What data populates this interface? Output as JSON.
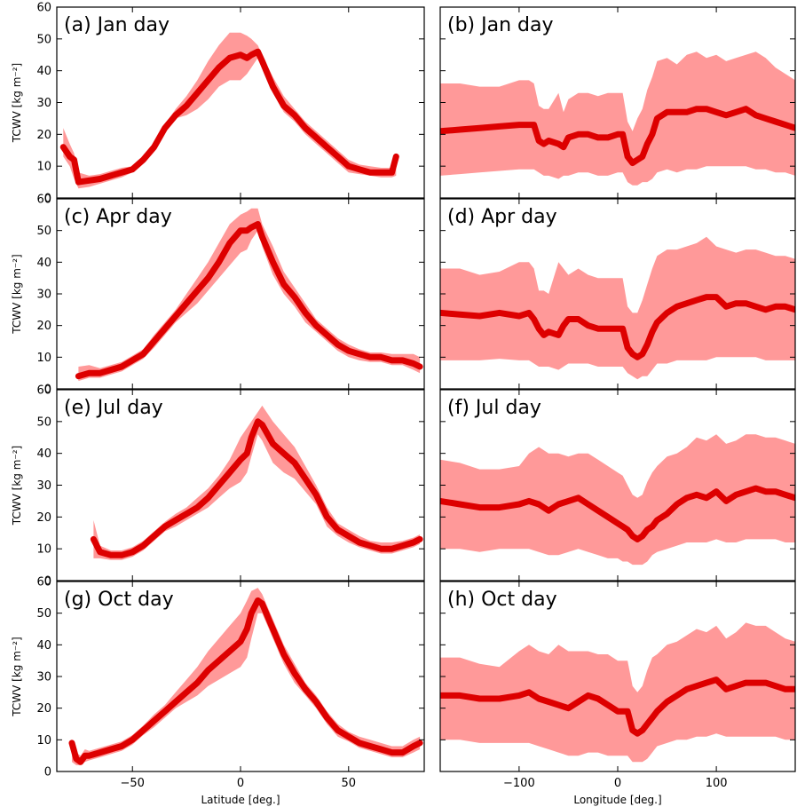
{
  "colors": {
    "band": "#ff7777",
    "mean": "#dd0000",
    "axis": "#000000"
  },
  "chart_data": [
    {
      "type": "area",
      "panel_label": "(a) Jan day",
      "ylabel": "TCWV  [kg m⁻²]",
      "xlabel": "",
      "xlim": [
        -85,
        85
      ],
      "ylim": [
        0,
        60
      ],
      "xticks": [
        -50,
        0,
        50
      ],
      "yticks": [
        0,
        10,
        20,
        30,
        40,
        50,
        60
      ],
      "x": [
        -82,
        -79,
        -77,
        -75,
        -70,
        -65,
        -60,
        -55,
        -50,
        -45,
        -40,
        -35,
        -30,
        -25,
        -20,
        -15,
        -10,
        -5,
        0,
        3,
        5,
        8,
        10,
        15,
        20,
        25,
        30,
        35,
        40,
        45,
        50,
        55,
        60,
        65,
        70,
        72
      ],
      "mean": [
        16,
        13,
        12,
        5,
        5.5,
        6,
        7,
        8,
        9,
        12,
        16,
        22,
        26,
        29,
        33,
        37,
        41,
        44,
        45,
        44,
        45,
        46,
        43,
        35,
        29,
        26,
        22,
        19,
        16,
        13,
        10,
        9,
        8,
        8,
        8,
        13
      ],
      "upper": [
        22,
        17,
        14,
        8,
        7,
        7.5,
        8.5,
        9.5,
        10,
        13,
        17,
        23,
        28,
        32,
        37,
        43,
        48,
        52,
        52,
        51,
        50,
        48,
        45,
        38,
        32,
        28,
        24,
        21,
        18,
        15,
        12,
        10.5,
        10,
        9.5,
        9.5,
        13
      ],
      "lower": [
        13,
        10,
        6,
        3,
        3.5,
        4.5,
        5.5,
        6.5,
        8,
        11,
        15,
        21,
        25,
        26,
        28,
        31,
        35,
        37,
        37,
        39,
        41,
        44,
        41,
        33,
        27,
        24,
        20,
        17,
        14,
        11,
        8,
        7.5,
        7,
        6.5,
        6.5,
        7
      ]
    },
    {
      "type": "area",
      "panel_label": "(b) Jan day",
      "ylabel": "",
      "xlabel": "",
      "xlim": [
        -180,
        180
      ],
      "ylim": [
        0,
        60
      ],
      "xticks": [
        -100,
        0,
        100
      ],
      "yticks": [
        0,
        10,
        20,
        30,
        40,
        50,
        60
      ],
      "x": [
        -180,
        -160,
        -140,
        -120,
        -100,
        -90,
        -85,
        -80,
        -75,
        -70,
        -60,
        -55,
        -50,
        -40,
        -30,
        -20,
        -10,
        0,
        5,
        10,
        15,
        20,
        25,
        30,
        35,
        40,
        50,
        60,
        70,
        80,
        90,
        100,
        110,
        120,
        130,
        140,
        150,
        160,
        170,
        180
      ],
      "mean": [
        21,
        21.5,
        22,
        22.5,
        23,
        23,
        23,
        18,
        17,
        18,
        17,
        16,
        19,
        20,
        20,
        19,
        19,
        20,
        20,
        13,
        11,
        12,
        13,
        17,
        20,
        25,
        27,
        27,
        27,
        28,
        28,
        27,
        26,
        27,
        28,
        26,
        25,
        24,
        23,
        22
      ],
      "upper": [
        36,
        36,
        35,
        35,
        37,
        37,
        36,
        29,
        28,
        28,
        33,
        27,
        31,
        33,
        33,
        32,
        33,
        33,
        33,
        24,
        21,
        25,
        28,
        34,
        38,
        43,
        44,
        42,
        45,
        46,
        44,
        45,
        43,
        44,
        45,
        46,
        44,
        41,
        39,
        37
      ],
      "lower": [
        7,
        7.5,
        8,
        8.5,
        9,
        9,
        9,
        8,
        7,
        7,
        6,
        7,
        7,
        8,
        8,
        7,
        7,
        8,
        8,
        5,
        4,
        4,
        5,
        5,
        6,
        8,
        9,
        8,
        9,
        9,
        10,
        10,
        10,
        10,
        10,
        9,
        9,
        8,
        8,
        7
      ]
    },
    {
      "type": "area",
      "panel_label": "(c) Apr day",
      "ylabel": "TCWV  [kg m⁻²]",
      "xlabel": "",
      "xlim": [
        -85,
        85
      ],
      "ylim": [
        0,
        60
      ],
      "xticks": [
        -50,
        0,
        50
      ],
      "yticks": [
        0,
        10,
        20,
        30,
        40,
        50,
        60
      ],
      "x": [
        -75,
        -70,
        -65,
        -60,
        -55,
        -50,
        -45,
        -40,
        -35,
        -30,
        -25,
        -20,
        -15,
        -10,
        -5,
        0,
        3,
        5,
        8,
        10,
        15,
        20,
        25,
        30,
        35,
        40,
        45,
        50,
        55,
        60,
        65,
        70,
        75,
        80,
        83
      ],
      "mean": [
        4,
        5,
        5,
        6,
        7,
        9,
        11,
        15,
        19,
        23,
        27,
        31,
        35,
        40,
        46,
        50,
        50,
        51,
        52,
        48,
        40,
        33,
        29,
        24,
        20,
        17,
        14,
        12,
        11,
        10,
        10,
        9,
        9,
        8,
        7
      ],
      "upper": [
        7,
        7.5,
        6.5,
        7.5,
        8.5,
        10.5,
        12.5,
        17,
        21,
        25,
        30,
        35,
        40,
        46,
        52,
        55,
        56,
        57,
        57,
        52,
        45,
        37,
        32,
        27,
        22,
        19,
        16,
        14,
        12.5,
        11.5,
        11.5,
        11,
        11,
        11,
        10
      ],
      "lower": [
        2.5,
        3.5,
        3.5,
        4.5,
        5.5,
        7.5,
        9.5,
        13,
        17,
        21,
        24,
        27,
        31,
        35,
        39,
        43,
        44,
        47,
        50,
        45,
        36,
        30,
        26,
        21,
        18,
        15,
        12,
        10,
        9,
        8.5,
        8.5,
        7.5,
        7.5,
        6,
        5
      ]
    },
    {
      "type": "area",
      "panel_label": "(d) Apr day",
      "ylabel": "",
      "xlabel": "",
      "xlim": [
        -180,
        180
      ],
      "ylim": [
        0,
        60
      ],
      "xticks": [
        -100,
        0,
        100
      ],
      "yticks": [
        0,
        10,
        20,
        30,
        40,
        50,
        60
      ],
      "x": [
        -180,
        -160,
        -140,
        -120,
        -100,
        -90,
        -85,
        -80,
        -75,
        -70,
        -60,
        -55,
        -50,
        -40,
        -30,
        -20,
        -10,
        0,
        5,
        10,
        15,
        20,
        25,
        30,
        35,
        40,
        50,
        60,
        70,
        80,
        90,
        100,
        110,
        120,
        130,
        140,
        150,
        160,
        170,
        180
      ],
      "mean": [
        24,
        23.5,
        23,
        24,
        23,
        24,
        22,
        19,
        17,
        18,
        17,
        20,
        22,
        22,
        20,
        19,
        19,
        19,
        19,
        13,
        11,
        10,
        11,
        14,
        18,
        21,
        24,
        26,
        27,
        28,
        29,
        29,
        26,
        27,
        27,
        26,
        25,
        26,
        26,
        25
      ],
      "upper": [
        38,
        38,
        36,
        37,
        40,
        40,
        38,
        31,
        31,
        30,
        40,
        38,
        36,
        38,
        36,
        35,
        35,
        35,
        35,
        26,
        24,
        24,
        28,
        33,
        38,
        42,
        44,
        44,
        45,
        46,
        48,
        45,
        44,
        43,
        44,
        44,
        43,
        42,
        42,
        41
      ],
      "lower": [
        9,
        9,
        9,
        9.5,
        9,
        9,
        8,
        7,
        7,
        7,
        6,
        7,
        8,
        8,
        8,
        7,
        7,
        7,
        7,
        5,
        4,
        3,
        4,
        4,
        6,
        8,
        8,
        9,
        9,
        9,
        9,
        10,
        10,
        10,
        10,
        10,
        9,
        9,
        9,
        9
      ]
    },
    {
      "type": "area",
      "panel_label": "(e) Jul day",
      "ylabel": "TCWV  [kg m⁻²]",
      "xlabel": "",
      "xlim": [
        -85,
        85
      ],
      "ylim": [
        0,
        60
      ],
      "xticks": [
        -50,
        0,
        50
      ],
      "yticks": [
        0,
        10,
        20,
        30,
        40,
        50,
        60
      ],
      "x": [
        -68,
        -65,
        -60,
        -55,
        -50,
        -45,
        -40,
        -35,
        -30,
        -25,
        -20,
        -15,
        -10,
        -5,
        0,
        3,
        5,
        8,
        10,
        15,
        20,
        25,
        30,
        35,
        40,
        45,
        50,
        55,
        60,
        65,
        70,
        75,
        80,
        83
      ],
      "mean": [
        13,
        9,
        8,
        8,
        9,
        11,
        14,
        17,
        19,
        21,
        23,
        26,
        30,
        34,
        38,
        40,
        45,
        50,
        49,
        43,
        40,
        37,
        32,
        27,
        20,
        16,
        14,
        12,
        11,
        10,
        10,
        11,
        12,
        13
      ],
      "upper": [
        19,
        11,
        9.5,
        9.5,
        10.5,
        12.5,
        15.5,
        18.5,
        21,
        23,
        26,
        29,
        33,
        38,
        45,
        48,
        50,
        53,
        55,
        50,
        46,
        42,
        36,
        30,
        23,
        18,
        16,
        14,
        12.5,
        12,
        12,
        12.5,
        13.5,
        14.5
      ],
      "lower": [
        7,
        7,
        6.5,
        6.5,
        7.5,
        9.5,
        12.5,
        15.5,
        17,
        19,
        21,
        23,
        26,
        29,
        31,
        34,
        39,
        46,
        44,
        37,
        34,
        32,
        28,
        24,
        17,
        14,
        12,
        10.5,
        9.5,
        8.5,
        8.5,
        9.5,
        10.5,
        11.5
      ]
    },
    {
      "type": "area",
      "panel_label": "(f) Jul day",
      "ylabel": "",
      "xlabel": "",
      "xlim": [
        -180,
        180
      ],
      "ylim": [
        0,
        60
      ],
      "xticks": [
        -100,
        0,
        100
      ],
      "yticks": [
        0,
        10,
        20,
        30,
        40,
        50,
        60
      ],
      "x": [
        -180,
        -160,
        -140,
        -120,
        -100,
        -90,
        -80,
        -70,
        -60,
        -50,
        -40,
        -30,
        -20,
        -10,
        0,
        5,
        10,
        15,
        20,
        25,
        30,
        35,
        40,
        50,
        60,
        70,
        80,
        90,
        100,
        110,
        120,
        130,
        140,
        150,
        160,
        170,
        180
      ],
      "mean": [
        25,
        24,
        23,
        23,
        24,
        25,
        24,
        22,
        24,
        25,
        26,
        24,
        22,
        20,
        18,
        17,
        16,
        14,
        13,
        14,
        16,
        17,
        19,
        21,
        24,
        26,
        27,
        26,
        28,
        25,
        27,
        28,
        29,
        28,
        28,
        27,
        26
      ],
      "upper": [
        38,
        37,
        35,
        35,
        36,
        40,
        42,
        40,
        40,
        39,
        40,
        40,
        38,
        36,
        34,
        33,
        30,
        27,
        26,
        27,
        31,
        34,
        36,
        39,
        40,
        42,
        45,
        44,
        46,
        43,
        44,
        46,
        46,
        45,
        45,
        44,
        43
      ],
      "lower": [
        10,
        10,
        9,
        10,
        10,
        10,
        9,
        8,
        8,
        9,
        10,
        9,
        8,
        7,
        7,
        6,
        6,
        5,
        5,
        5,
        6,
        8,
        9,
        10,
        11,
        12,
        12,
        12,
        13,
        12,
        12,
        13,
        13,
        13,
        13,
        12,
        12
      ]
    },
    {
      "type": "area",
      "panel_label": "(g) Oct day",
      "ylabel": "TCWV  [kg m⁻²]",
      "xlabel": "Latitude [deg.]",
      "xlim": [
        -85,
        85
      ],
      "ylim": [
        0,
        60
      ],
      "xticks": [
        -50,
        0,
        50
      ],
      "yticks": [
        0,
        10,
        20,
        30,
        40,
        50,
        60
      ],
      "x": [
        -78,
        -76,
        -74,
        -72,
        -70,
        -65,
        -60,
        -55,
        -50,
        -45,
        -40,
        -35,
        -30,
        -25,
        -20,
        -15,
        -10,
        -5,
        0,
        3,
        5,
        8,
        10,
        15,
        20,
        25,
        30,
        35,
        40,
        45,
        50,
        55,
        60,
        65,
        70,
        75,
        80,
        83
      ],
      "mean": [
        9,
        4,
        3,
        5,
        5,
        6,
        7,
        8,
        10,
        13,
        16,
        19,
        22,
        25,
        28,
        32,
        35,
        38,
        41,
        45,
        50,
        54,
        53,
        45,
        37,
        31,
        26,
        22,
        17,
        13,
        11,
        9,
        8,
        7,
        6,
        6,
        8,
        9
      ],
      "upper": [
        10,
        6,
        5,
        7,
        6.5,
        7.5,
        8.5,
        9.5,
        11.5,
        14.5,
        18,
        21,
        25,
        29,
        33,
        38,
        42,
        46,
        50,
        54,
        57,
        58,
        56,
        48,
        40,
        34,
        28,
        24,
        19,
        15,
        12.5,
        11,
        10,
        9,
        8,
        8,
        10,
        11
      ],
      "lower": [
        3,
        2,
        2,
        3,
        3.5,
        4.5,
        5.5,
        6.5,
        8.5,
        11.5,
        14,
        17,
        20,
        22,
        24,
        27,
        29,
        31,
        33,
        36,
        42,
        50,
        50,
        42,
        34,
        28,
        24,
        20,
        15,
        11,
        9.5,
        7.5,
        6.5,
        5.5,
        4.5,
        4.5,
        6,
        7
      ]
    },
    {
      "type": "area",
      "panel_label": "(h) Oct day",
      "ylabel": "",
      "xlabel": "Longitude [deg.]",
      "xlim": [
        -180,
        180
      ],
      "ylim": [
        0,
        60
      ],
      "xticks": [
        -100,
        0,
        100
      ],
      "yticks": [
        0,
        10,
        20,
        30,
        40,
        50,
        60
      ],
      "x": [
        -180,
        -160,
        -140,
        -120,
        -100,
        -90,
        -80,
        -70,
        -60,
        -50,
        -40,
        -30,
        -20,
        -10,
        0,
        5,
        10,
        15,
        20,
        25,
        30,
        35,
        40,
        50,
        60,
        70,
        80,
        90,
        100,
        110,
        120,
        130,
        140,
        150,
        160,
        170,
        180
      ],
      "mean": [
        24,
        24,
        23,
        23,
        24,
        25,
        23,
        22,
        21,
        20,
        22,
        24,
        23,
        21,
        19,
        19,
        19,
        13,
        12,
        13,
        15,
        17,
        19,
        22,
        24,
        26,
        27,
        28,
        29,
        26,
        27,
        28,
        28,
        28,
        27,
        26,
        26
      ],
      "upper": [
        36,
        36,
        34,
        33,
        38,
        40,
        38,
        37,
        40,
        38,
        38,
        38,
        37,
        37,
        35,
        35,
        35,
        27,
        25,
        27,
        32,
        36,
        37,
        40,
        41,
        43,
        45,
        44,
        46,
        42,
        44,
        47,
        46,
        46,
        44,
        42,
        41
      ],
      "lower": [
        10,
        10,
        9,
        9,
        9,
        9,
        8,
        7,
        6,
        5,
        5,
        6,
        6,
        5,
        5,
        5,
        5,
        3,
        3,
        3,
        4,
        6,
        8,
        9,
        10,
        10,
        11,
        11,
        12,
        11,
        11,
        11,
        11,
        11,
        11,
        10,
        10
      ]
    }
  ]
}
